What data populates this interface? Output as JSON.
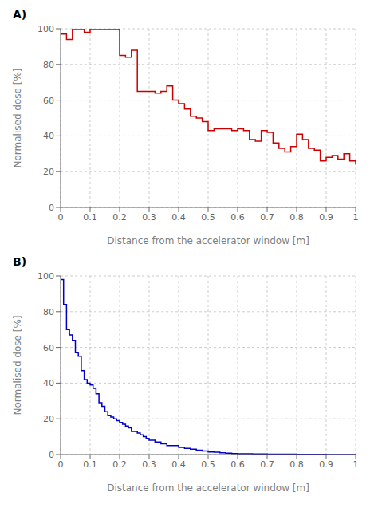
{
  "chart_data": [
    {
      "type": "step",
      "title": "A)",
      "x_label": "Distance from the accelerator window [m]",
      "y_label": "Normalised dose [%]",
      "color": "#cc0000",
      "x": [
        0.0,
        0.02,
        0.04,
        0.06,
        0.08,
        0.1,
        0.12,
        0.14,
        0.16,
        0.18,
        0.2,
        0.22,
        0.24,
        0.26,
        0.28,
        0.3,
        0.32,
        0.34,
        0.36,
        0.38,
        0.4,
        0.42,
        0.44,
        0.46,
        0.48,
        0.5,
        0.52,
        0.54,
        0.56,
        0.58,
        0.6,
        0.62,
        0.64,
        0.66,
        0.68,
        0.7,
        0.72,
        0.74,
        0.76,
        0.78,
        0.8,
        0.82,
        0.84,
        0.86,
        0.88,
        0.9,
        0.92,
        0.94,
        0.96,
        0.98,
        1.0
      ],
      "values": [
        97,
        94,
        100,
        100,
        98,
        100,
        100,
        100,
        100,
        100,
        85,
        84,
        88,
        65,
        65,
        65,
        64,
        65,
        68,
        60,
        58,
        55,
        51,
        50,
        48,
        43,
        44,
        44,
        44,
        43,
        44,
        43,
        38,
        37,
        43,
        42,
        36,
        33,
        31,
        34,
        41,
        38,
        33,
        32,
        26,
        28,
        29,
        27,
        30,
        26,
        24
      ],
      "xlim": [
        0,
        1
      ],
      "ylim": [
        0,
        100
      ],
      "xticks": [
        0,
        0.1,
        0.2,
        0.3,
        0.4,
        0.5,
        0.6,
        0.7,
        0.8,
        0.9,
        1
      ],
      "yticks": [
        0,
        20,
        40,
        60,
        80,
        100
      ],
      "grid": true
    },
    {
      "type": "step",
      "title": "B)",
      "x_label": "Distance from the accelerator window [m]",
      "y_label": "Normalised dose [%]",
      "color": "#0000cc",
      "x": [
        0.0,
        0.01,
        0.02,
        0.03,
        0.04,
        0.05,
        0.06,
        0.07,
        0.08,
        0.09,
        0.1,
        0.11,
        0.12,
        0.13,
        0.14,
        0.15,
        0.16,
        0.17,
        0.18,
        0.19,
        0.2,
        0.21,
        0.22,
        0.23,
        0.24,
        0.25,
        0.26,
        0.27,
        0.28,
        0.29,
        0.3,
        0.32,
        0.34,
        0.36,
        0.38,
        0.4,
        0.42,
        0.44,
        0.46,
        0.48,
        0.5,
        0.52,
        0.54,
        0.56,
        0.58,
        0.6,
        0.65,
        0.7,
        0.8,
        0.9,
        1.0
      ],
      "values": [
        98,
        84,
        70,
        67,
        64,
        57,
        55,
        47,
        42,
        40,
        39,
        37,
        34,
        29,
        27,
        24,
        22,
        21,
        20,
        19,
        18,
        17,
        16,
        15,
        13,
        13,
        12,
        11,
        10,
        9,
        8,
        7,
        6,
        5,
        5,
        4,
        3.5,
        3.0,
        2.5,
        2.0,
        1.5,
        1.3,
        1.0,
        0.8,
        0.6,
        0.5,
        0.3,
        0.2,
        0.1,
        0.05,
        0.02
      ],
      "xlim": [
        0,
        1
      ],
      "ylim": [
        0,
        100
      ],
      "xticks": [
        0,
        0.1,
        0.2,
        0.3,
        0.4,
        0.5,
        0.6,
        0.7,
        0.8,
        0.9,
        1
      ],
      "yticks": [
        0,
        20,
        40,
        60,
        80,
        100
      ],
      "grid": true
    }
  ]
}
